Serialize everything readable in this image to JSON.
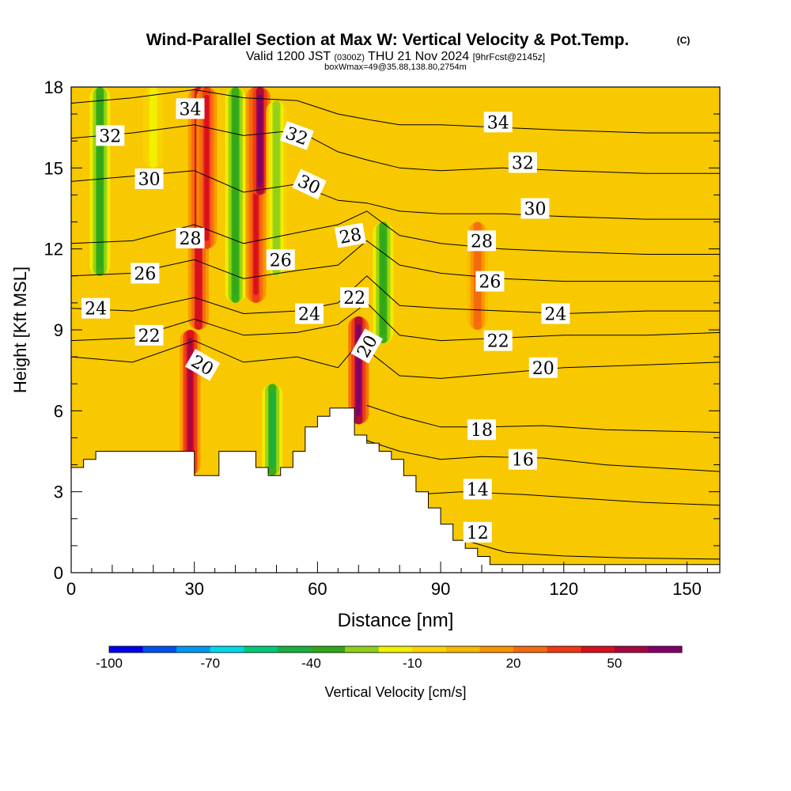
{
  "header": {
    "title": "Wind-Parallel Section at Max W: Vertical Velocity & Pot.Temp.",
    "copyright": "(C)",
    "valid_prefix": "Valid 1200 JST",
    "valid_utc": "(0300Z)",
    "valid_date": "THU 21 Nov 2024",
    "forecast": "[9hrFcst@2145z]",
    "boxinfo": "boxWmax=49@35.88,138.80,2754m"
  },
  "chart_data": {
    "type": "heatmap",
    "subtype": "cross-section contour (filled vertical velocity + potential temperature isentropes)",
    "xlabel": "Distance [nm]",
    "ylabel": "Height [Kft MSL]",
    "xlim": [
      0,
      158
    ],
    "ylim": [
      0,
      18
    ],
    "xticks": [
      0,
      30,
      60,
      90,
      120,
      150
    ],
    "yticks": [
      0,
      3,
      6,
      9,
      12,
      15,
      18
    ],
    "grid": false,
    "colorbar": {
      "label": "Vertical Velocity [cm/s]",
      "placement": "bottom",
      "levels": [
        -100,
        -90,
        -80,
        -70,
        -60,
        -50,
        -40,
        -30,
        -20,
        -10,
        0,
        10,
        20,
        30,
        40,
        50,
        60,
        70
      ],
      "tick_labels": [
        "-100",
        "-70",
        "-40",
        "-10",
        "20",
        "50"
      ],
      "tick_values": [
        -100,
        -70,
        -40,
        -10,
        20,
        50
      ],
      "colors": [
        "#0000ee",
        "#0050f0",
        "#0098f0",
        "#00d8e8",
        "#00c878",
        "#18b040",
        "#30a818",
        "#90d018",
        "#f0f000",
        "#fad200",
        "#f8b800",
        "#f89400",
        "#f46a10",
        "#f03814",
        "#d8101e",
        "#a80640",
        "#80006a"
      ]
    },
    "terrain": {
      "x": [
        0,
        3,
        3,
        6,
        6,
        9,
        9,
        30,
        30,
        36,
        36,
        39,
        39,
        42,
        42,
        45,
        45,
        48,
        48,
        51,
        51,
        54,
        54,
        57,
        57,
        60,
        60,
        63,
        63,
        69,
        69,
        72,
        72,
        75,
        75,
        78,
        78,
        81,
        81,
        84,
        84,
        87,
        87,
        90,
        90,
        93,
        93,
        96,
        96,
        99,
        99,
        102,
        102,
        158
      ],
      "y": [
        3.9,
        3.9,
        4.2,
        4.2,
        4.5,
        4.5,
        4.5,
        4.5,
        3.6,
        3.6,
        4.5,
        4.5,
        4.5,
        4.5,
        4.5,
        4.5,
        3.9,
        3.9,
        3.6,
        3.6,
        3.9,
        3.9,
        4.5,
        4.5,
        5.4,
        5.4,
        5.8,
        5.8,
        6.1,
        6.1,
        5.1,
        5.1,
        4.8,
        4.8,
        4.5,
        4.5,
        4.2,
        4.2,
        3.6,
        3.6,
        3.0,
        3.0,
        2.4,
        2.4,
        1.8,
        1.8,
        1.2,
        1.2,
        0.9,
        0.9,
        0.6,
        0.6,
        0.3,
        0.3
      ]
    },
    "vertical_velocity_features": [
      {
        "x": 29,
        "y_range": [
          3.6,
          9.0
        ],
        "w": 55
      },
      {
        "x": 31,
        "y_range": [
          9.0,
          18.0
        ],
        "w": 48
      },
      {
        "x": 33,
        "y_range": [
          12.0,
          18.0
        ],
        "w": 45
      },
      {
        "x": 40,
        "y_range": [
          10.0,
          18.0
        ],
        "w": -40
      },
      {
        "x": 45,
        "y_range": [
          10.0,
          18.0
        ],
        "w": 45
      },
      {
        "x": 46,
        "y_range": [
          14.0,
          18.0
        ],
        "w": 62
      },
      {
        "x": 49,
        "y_range": [
          3.6,
          7.0
        ],
        "w": -45
      },
      {
        "x": 50,
        "y_range": [
          11.0,
          17.5
        ],
        "w": -25
      },
      {
        "x": 70,
        "y_range": [
          5.5,
          9.5
        ],
        "w": 62
      },
      {
        "x": 76,
        "y_range": [
          8.5,
          13.0
        ],
        "w": -40
      },
      {
        "x": 7,
        "y_range": [
          11.0,
          18.0
        ],
        "w": -40
      },
      {
        "x": 20,
        "y_range": [
          15.0,
          18.0
        ],
        "w": -15
      },
      {
        "x": 99,
        "y_range": [
          9.0,
          13.0
        ],
        "w": 25
      }
    ],
    "isentropes": [
      {
        "theta": 12,
        "label_x": 99,
        "label_y": 1.5,
        "x": [
          96,
          106,
          120,
          135,
          158
        ],
        "y": [
          1.2,
          0.75,
          0.62,
          0.55,
          0.5
        ]
      },
      {
        "theta": 14,
        "label_x": 99,
        "label_y": 3.1,
        "x": [
          84,
          95,
          110,
          125,
          140,
          158
        ],
        "y": [
          2.9,
          3.0,
          2.9,
          2.75,
          2.6,
          2.5
        ]
      },
      {
        "theta": 16,
        "label_x": 110,
        "label_y": 4.2,
        "x": [
          72,
          80,
          90,
          100,
          115,
          130,
          158
        ],
        "y": [
          4.9,
          4.5,
          4.2,
          4.3,
          4.25,
          4.0,
          3.75
        ]
      },
      {
        "theta": 18,
        "label_x": 100,
        "label_y": 5.3,
        "x": [
          72,
          80,
          90,
          100,
          115,
          130,
          158
        ],
        "y": [
          6.2,
          5.8,
          5.4,
          5.4,
          5.45,
          5.3,
          5.2
        ]
      },
      {
        "theta": 20,
        "label_x": 115,
        "label_y": 7.6,
        "x": [
          0,
          15,
          30,
          42,
          55,
          65,
          70,
          80,
          90,
          105,
          120,
          140,
          158
        ],
        "y": [
          8.0,
          7.8,
          8.6,
          7.8,
          8.0,
          7.6,
          8.5,
          7.3,
          7.2,
          7.4,
          7.6,
          7.7,
          7.8
        ]
      },
      {
        "theta": 22,
        "label_x": 104,
        "label_y": 8.6,
        "x": [
          0,
          15,
          30,
          42,
          55,
          65,
          72,
          80,
          90,
          105,
          120,
          140,
          158
        ],
        "y": [
          8.6,
          8.7,
          9.4,
          8.8,
          8.9,
          9.2,
          10.0,
          8.8,
          8.6,
          8.7,
          8.8,
          8.8,
          8.9
        ]
      },
      {
        "theta": 24,
        "label_x": 118,
        "label_y": 9.6,
        "x": [
          0,
          15,
          30,
          42,
          55,
          65,
          72,
          80,
          90,
          105,
          120,
          140,
          158
        ],
        "y": [
          9.8,
          9.7,
          10.2,
          9.6,
          9.7,
          10.0,
          11.0,
          9.9,
          9.8,
          9.7,
          9.6,
          9.7,
          9.7
        ]
      },
      {
        "theta": 26,
        "label_x": 102,
        "label_y": 10.8,
        "x": [
          0,
          15,
          30,
          42,
          55,
          65,
          72,
          80,
          90,
          105,
          120,
          140,
          158
        ],
        "y": [
          11.0,
          11.1,
          11.6,
          10.9,
          11.2,
          11.4,
          12.3,
          11.4,
          11.1,
          10.9,
          10.8,
          10.8,
          10.8
        ]
      },
      {
        "theta": 28,
        "label_x": 100,
        "label_y": 12.3,
        "x": [
          0,
          15,
          30,
          42,
          55,
          65,
          72,
          80,
          90,
          105,
          120,
          140,
          158
        ],
        "y": [
          12.2,
          12.3,
          12.9,
          12.2,
          12.6,
          12.9,
          13.4,
          12.5,
          12.2,
          12.0,
          11.9,
          11.8,
          11.8
        ]
      },
      {
        "theta": 30,
        "label_x": 113,
        "label_y": 13.5,
        "x": [
          0,
          15,
          30,
          42,
          55,
          65,
          72,
          80,
          90,
          105,
          120,
          140,
          158
        ],
        "y": [
          14.5,
          14.7,
          14.9,
          14.1,
          14.4,
          13.8,
          13.7,
          13.4,
          13.3,
          13.3,
          13.2,
          13.1,
          13.1
        ]
      },
      {
        "theta": 32,
        "label_x": 110,
        "label_y": 15.2,
        "x": [
          0,
          15,
          30,
          42,
          55,
          65,
          72,
          80,
          90,
          105,
          120,
          140,
          158
        ],
        "y": [
          16.1,
          16.3,
          16.6,
          16.2,
          16.4,
          15.6,
          15.3,
          15.0,
          14.9,
          15.0,
          14.9,
          14.8,
          14.8
        ]
      },
      {
        "theta": 34,
        "label_x": 104,
        "label_y": 16.7,
        "x": [
          0,
          15,
          30,
          42,
          55,
          65,
          72,
          80,
          90,
          105,
          120,
          140,
          158
        ],
        "y": [
          17.4,
          17.6,
          17.9,
          17.6,
          17.5,
          17.0,
          16.8,
          16.6,
          16.6,
          16.5,
          16.4,
          16.3,
          16.3
        ]
      }
    ],
    "contour_labels": [
      {
        "text": "34",
        "x": 29,
        "y": 17.2,
        "rotate": 0
      },
      {
        "text": "32",
        "x": 9.5,
        "y": 16.2,
        "rotate": 0
      },
      {
        "text": "32",
        "x": 55,
        "y": 16.2,
        "rotate": 20
      },
      {
        "text": "30",
        "x": 19,
        "y": 14.6,
        "rotate": 0
      },
      {
        "text": "30",
        "x": 58,
        "y": 14.4,
        "rotate": 25
      },
      {
        "text": "28",
        "x": 29,
        "y": 12.4,
        "rotate": 0
      },
      {
        "text": "28",
        "x": 68,
        "y": 12.5,
        "rotate": -10
      },
      {
        "text": "26",
        "x": 18,
        "y": 11.1,
        "rotate": 0
      },
      {
        "text": "26",
        "x": 51,
        "y": 11.6,
        "rotate": 0
      },
      {
        "text": "24",
        "x": 6,
        "y": 9.8,
        "rotate": 0
      },
      {
        "text": "24",
        "x": 58,
        "y": 9.6,
        "rotate": 0
      },
      {
        "text": "22",
        "x": 19,
        "y": 8.8,
        "rotate": 0
      },
      {
        "text": "22",
        "x": 69,
        "y": 10.2,
        "rotate": 0
      },
      {
        "text": "20",
        "x": 32,
        "y": 7.7,
        "rotate": 30
      },
      {
        "text": "20",
        "x": 72,
        "y": 8.4,
        "rotate": -60
      }
    ]
  }
}
